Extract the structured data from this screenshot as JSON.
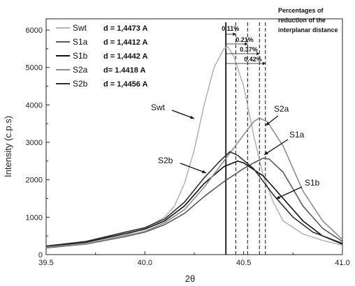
{
  "chart_data": {
    "type": "line",
    "title": "",
    "xlabel": "2θ",
    "ylabel": "Intensity (c.p.s)",
    "xlim": [
      39.5,
      41.0
    ],
    "ylim": [
      0,
      6300
    ],
    "x_ticks": [
      "39.5",
      "40.0",
      "40.5",
      "41.0"
    ],
    "y_ticks": [
      "0",
      "1000",
      "2000",
      "3000",
      "4000",
      "5000",
      "6000"
    ],
    "grid": false,
    "legend_position": "top-left",
    "series": [
      {
        "name": "Swt",
        "d_label": "d = 1,4473 A",
        "color": "#b5b5b5",
        "label": "Swt",
        "points": [
          [
            39.5,
            180
          ],
          [
            39.7,
            300
          ],
          [
            39.9,
            520
          ],
          [
            40.0,
            700
          ],
          [
            40.1,
            1000
          ],
          [
            40.15,
            1300
          ],
          [
            40.2,
            1900
          ],
          [
            40.25,
            2800
          ],
          [
            40.3,
            4000
          ],
          [
            40.35,
            5000
          ],
          [
            40.4,
            5500
          ],
          [
            40.42,
            5550
          ],
          [
            40.45,
            5300
          ],
          [
            40.5,
            4500
          ],
          [
            40.55,
            3200
          ],
          [
            40.6,
            2100
          ],
          [
            40.65,
            1400
          ],
          [
            40.7,
            900
          ],
          [
            40.8,
            550
          ],
          [
            40.9,
            380
          ],
          [
            41.0,
            250
          ]
        ]
      },
      {
        "name": "S1a",
        "d_label": "d = 1,4412 A",
        "color": "#5a5a5a",
        "label": "S1a",
        "points": [
          [
            39.5,
            180
          ],
          [
            39.7,
            280
          ],
          [
            39.9,
            480
          ],
          [
            40.0,
            600
          ],
          [
            40.1,
            800
          ],
          [
            40.2,
            1100
          ],
          [
            40.3,
            1550
          ],
          [
            40.4,
            1950
          ],
          [
            40.5,
            2300
          ],
          [
            40.55,
            2450
          ],
          [
            40.6,
            2580
          ],
          [
            40.63,
            2550
          ],
          [
            40.7,
            2200
          ],
          [
            40.8,
            1300
          ],
          [
            40.9,
            700
          ],
          [
            41.0,
            350
          ]
        ]
      },
      {
        "name": "S1b",
        "d_label": "d = 1,4442 A",
        "color": "#111111",
        "label": "S1b",
        "points": [
          [
            39.5,
            220
          ],
          [
            39.7,
            330
          ],
          [
            39.9,
            560
          ],
          [
            40.0,
            680
          ],
          [
            40.1,
            900
          ],
          [
            40.2,
            1300
          ],
          [
            40.3,
            1900
          ],
          [
            40.4,
            2350
          ],
          [
            40.47,
            2500
          ],
          [
            40.5,
            2450
          ],
          [
            40.6,
            2100
          ],
          [
            40.7,
            1500
          ],
          [
            40.8,
            900
          ],
          [
            40.9,
            500
          ],
          [
            41.0,
            280
          ]
        ]
      },
      {
        "name": "S2a",
        "d_label": "d= 1.4418 A",
        "color": "#8c8c8c",
        "label": "S2a",
        "points": [
          [
            39.5,
            200
          ],
          [
            39.7,
            290
          ],
          [
            39.9,
            500
          ],
          [
            40.0,
            620
          ],
          [
            40.1,
            850
          ],
          [
            40.2,
            1200
          ],
          [
            40.3,
            1800
          ],
          [
            40.4,
            2500
          ],
          [
            40.5,
            3200
          ],
          [
            40.55,
            3550
          ],
          [
            40.58,
            3650
          ],
          [
            40.62,
            3550
          ],
          [
            40.7,
            2900
          ],
          [
            40.8,
            1700
          ],
          [
            40.9,
            900
          ],
          [
            41.0,
            400
          ]
        ]
      },
      {
        "name": "S2b",
        "d_label": "d = 1,4456 A",
        "color": "#303030",
        "label": "S2b",
        "points": [
          [
            39.5,
            230
          ],
          [
            39.7,
            350
          ],
          [
            39.9,
            600
          ],
          [
            40.0,
            720
          ],
          [
            40.1,
            950
          ],
          [
            40.2,
            1400
          ],
          [
            40.3,
            2050
          ],
          [
            40.38,
            2500
          ],
          [
            40.43,
            2750
          ],
          [
            40.47,
            2650
          ],
          [
            40.55,
            2300
          ],
          [
            40.65,
            1600
          ],
          [
            40.75,
            1000
          ],
          [
            40.85,
            600
          ],
          [
            41.0,
            300
          ]
        ]
      }
    ],
    "reference_lines": [
      40.41,
      40.46,
      40.52,
      40.58,
      40.61
    ],
    "reduction_percentages": [
      "0.11%",
      "0.21%",
      "0.37%",
      "0.42%"
    ],
    "note": [
      "Percentages of",
      "reduction of the",
      "interplanar distance"
    ]
  }
}
